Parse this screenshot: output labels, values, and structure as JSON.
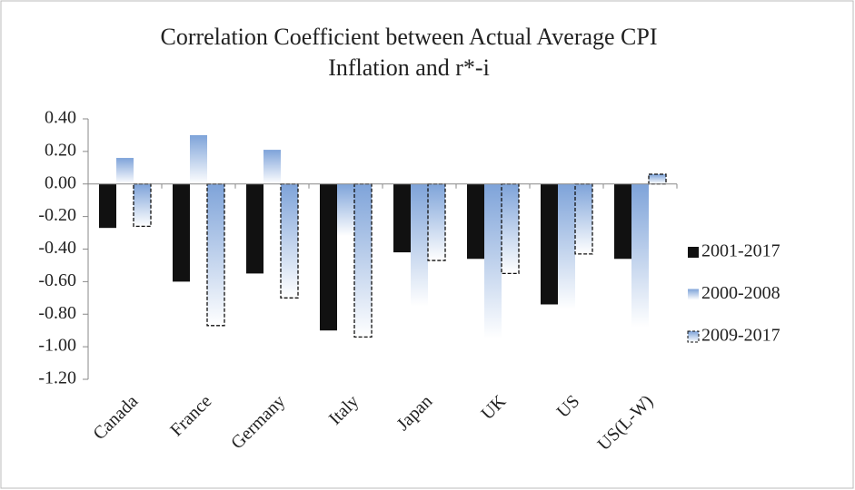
{
  "chart_data": {
    "type": "bar",
    "title": "Correlation Coefficient between Actual Average CPI Inflation and r*-i",
    "categories": [
      "Canada",
      "France",
      "Germany",
      "Italy",
      "Japan",
      "UK",
      "US",
      "US(L-W)"
    ],
    "series": [
      {
        "name": "2001-2017",
        "color": "#111111",
        "values": [
          -0.27,
          -0.6,
          -0.55,
          -0.9,
          -0.42,
          -0.46,
          -0.74,
          -0.46
        ]
      },
      {
        "name": "2000-2008",
        "color": "#7ea3d9",
        "gradient": true,
        "values": [
          0.16,
          0.3,
          0.21,
          -0.32,
          -0.75,
          -0.95,
          -0.77,
          -0.88
        ]
      },
      {
        "name": "2009-2017",
        "color": "#7ea3d9",
        "gradient": true,
        "dashed": true,
        "values": [
          -0.26,
          -0.87,
          -0.7,
          -0.94,
          -0.47,
          -0.55,
          -0.43,
          0.06
        ]
      }
    ],
    "ylim": [
      -1.2,
      0.4
    ],
    "yticks": [
      {
        "value": -1.2,
        "label": "-1.20"
      },
      {
        "value": -1.0,
        "label": "-1.00"
      },
      {
        "value": -0.8,
        "label": "-0.80"
      },
      {
        "value": -0.6,
        "label": "-0.60"
      },
      {
        "value": -0.4,
        "label": "-0.40"
      },
      {
        "value": -0.2,
        "label": "-0.20"
      },
      {
        "value": 0,
        "label": "0.00"
      },
      {
        "value": 0.2,
        "label": "0.20"
      },
      {
        "value": 0.4,
        "label": "0.40"
      }
    ],
    "grid": false,
    "legend": "right"
  }
}
